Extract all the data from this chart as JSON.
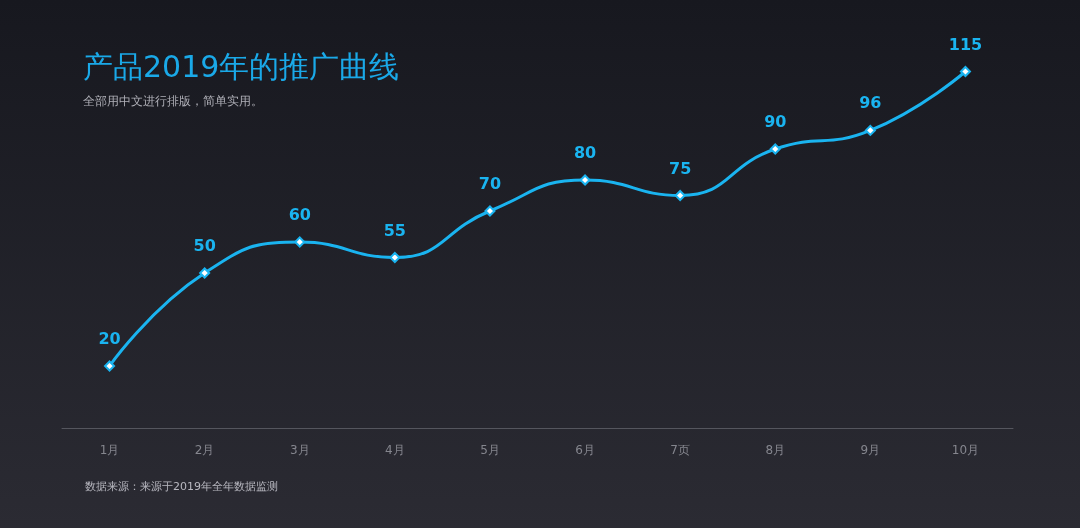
{
  "chart_data": {
    "type": "line",
    "title": "产品2019年的推广曲线",
    "subtitle": "全部用中文进行排版，简单实用。",
    "categories": [
      "1月",
      "2月",
      "3月",
      "4月",
      "5月",
      "6月",
      "7页",
      "8月",
      "9月",
      "10月"
    ],
    "series": [
      {
        "color": "#1ab4f0",
        "values": [
          20,
          50,
          60,
          55,
          70,
          80,
          75,
          90,
          96,
          115
        ]
      }
    ],
    "data_labels": true,
    "marker": "diamond",
    "grid": false,
    "tick_labels": "x",
    "annotations": [
      "数据来源：来源于2019年全年数据监测"
    ]
  }
}
